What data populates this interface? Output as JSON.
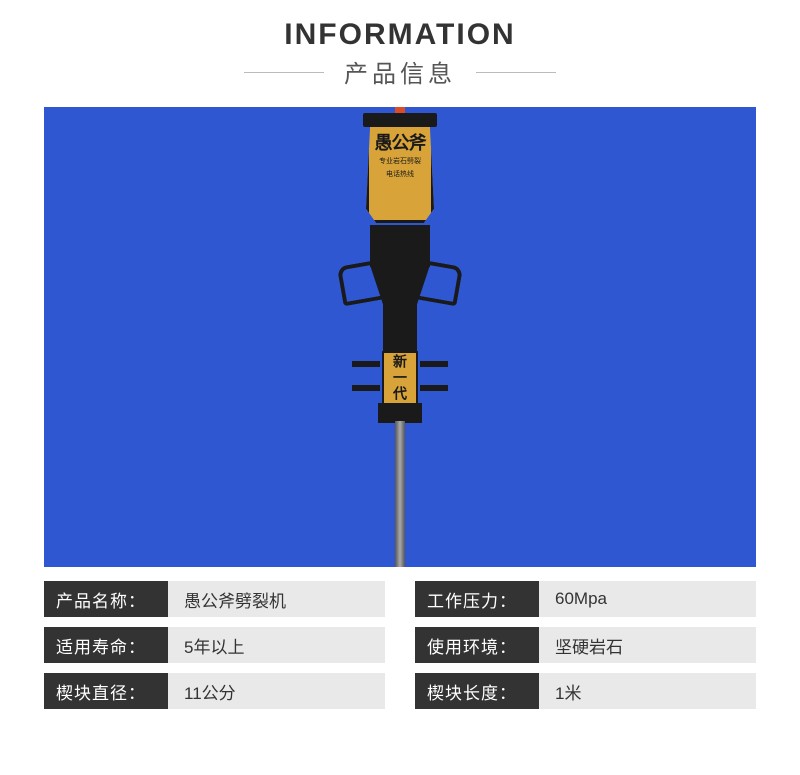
{
  "header": {
    "title_en": "INFORMATION",
    "title_cn": "产品信息"
  },
  "product": {
    "brand_text": "愚公斧",
    "sub_line1": "专业岩石劈裂",
    "sub_line2": "电话热线",
    "generation_label": "新一代"
  },
  "specs": {
    "left": [
      {
        "label": "产品名称：",
        "value": "愚公斧劈裂机"
      },
      {
        "label": "适用寿命：",
        "value": "5年以上"
      },
      {
        "label": "楔块直径：",
        "value": "11公分"
      }
    ],
    "right": [
      {
        "label": "工作压力：",
        "value": "60Mpa"
      },
      {
        "label": "使用环境：",
        "value": "坚硬岩石"
      },
      {
        "label": "楔块长度：",
        "value": "1米"
      }
    ]
  },
  "styling": {
    "background_color": "#ffffff",
    "product_bg": "#2e57d1",
    "label_bg": "#333333",
    "label_text_color": "#ffffff",
    "value_bg": "#e9e9e9",
    "value_text_color": "#333333",
    "plate_color": "#d8a43a",
    "device_color": "#1a1a1a",
    "header_en_fontsize": 30,
    "header_cn_fontsize": 24,
    "spec_fontsize": 17,
    "spec_row_height": 36,
    "spec_label_width": 124,
    "product_area_w": 712,
    "product_area_h": 460
  }
}
